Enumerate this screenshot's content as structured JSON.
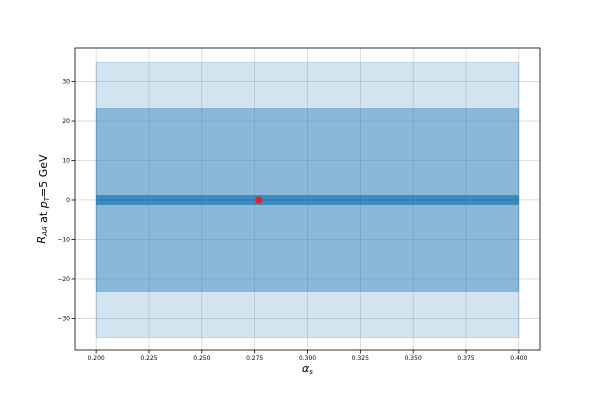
{
  "chart_data": {
    "type": "area",
    "title": "",
    "xlabel": "α_s",
    "ylabel": "R_AA at p_T=5 GeV",
    "xlim": [
      0.19,
      0.41
    ],
    "ylim": [
      -38,
      38.5
    ],
    "grid": true,
    "x_ticks": [
      0.2,
      0.225,
      0.25,
      0.275,
      0.3,
      0.325,
      0.35,
      0.375,
      0.4
    ],
    "x_tick_labels": [
      "0.200",
      "0.225",
      "0.250",
      "0.275",
      "0.300",
      "0.325",
      "0.350",
      "0.375",
      "0.400"
    ],
    "y_ticks": [
      -30,
      -20,
      -10,
      0,
      10,
      20,
      30
    ],
    "y_tick_labels": [
      "−30",
      "−20",
      "−10",
      "0",
      "10",
      "20",
      "30"
    ],
    "bands": [
      {
        "x_range": [
          0.2,
          0.4
        ],
        "lower": -34.8,
        "upper": 34.8,
        "color": "#1f77b4",
        "opacity": 0.2
      },
      {
        "x_range": [
          0.2,
          0.4
        ],
        "lower": -23.2,
        "upper": 23.2,
        "color": "#1f77b4",
        "opacity": 0.4
      },
      {
        "x_range": [
          0.2,
          0.4
        ],
        "lower": -1.2,
        "upper": 1.2,
        "color": "#1f77b4",
        "opacity": 0.7
      }
    ],
    "central_line": {
      "x": [
        0.2,
        0.4
      ],
      "y": [
        0,
        0
      ],
      "color": "#1f77b4"
    },
    "marker": {
      "x": 0.277,
      "y": 0,
      "color": "#d62728"
    }
  }
}
